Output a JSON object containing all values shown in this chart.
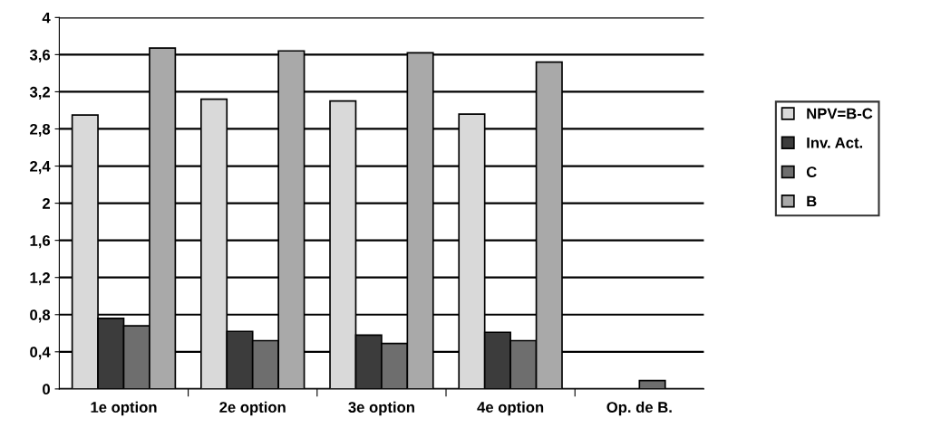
{
  "chart_data": {
    "type": "bar",
    "categories": [
      "1e option",
      "2e option",
      "3e option",
      "4e option",
      "Op. de B."
    ],
    "series": [
      {
        "name": "NPV=B-C",
        "color": "#d9d9d9",
        "values": [
          2.95,
          3.12,
          3.1,
          2.96,
          0
        ]
      },
      {
        "name": "Inv. Act.",
        "color": "#3c3c3c",
        "values": [
          0.76,
          0.62,
          0.58,
          0.61,
          0
        ]
      },
      {
        "name": "C",
        "color": "#6e6e6e",
        "values": [
          0.68,
          0.52,
          0.49,
          0.52,
          0.09
        ]
      },
      {
        "name": "B",
        "color": "#a9a9a9",
        "values": [
          3.67,
          3.64,
          3.62,
          3.52,
          0
        ]
      }
    ],
    "ylim": [
      0,
      4
    ],
    "yticks": [
      {
        "value": 0,
        "label": "0"
      },
      {
        "value": 0.4,
        "label": "0,4"
      },
      {
        "value": 0.8,
        "label": "0,8"
      },
      {
        "value": 1.2,
        "label": "1,2"
      },
      {
        "value": 1.6,
        "label": "1,6"
      },
      {
        "value": 2,
        "label": "2"
      },
      {
        "value": 2.4,
        "label": "2,4"
      },
      {
        "value": 2.8,
        "label": "2,8"
      },
      {
        "value": 3.2,
        "label": "3,2"
      },
      {
        "value": 3.6,
        "label": "3,6"
      },
      {
        "value": 4,
        "label": "4"
      }
    ],
    "grid": "y",
    "legend": "right"
  }
}
